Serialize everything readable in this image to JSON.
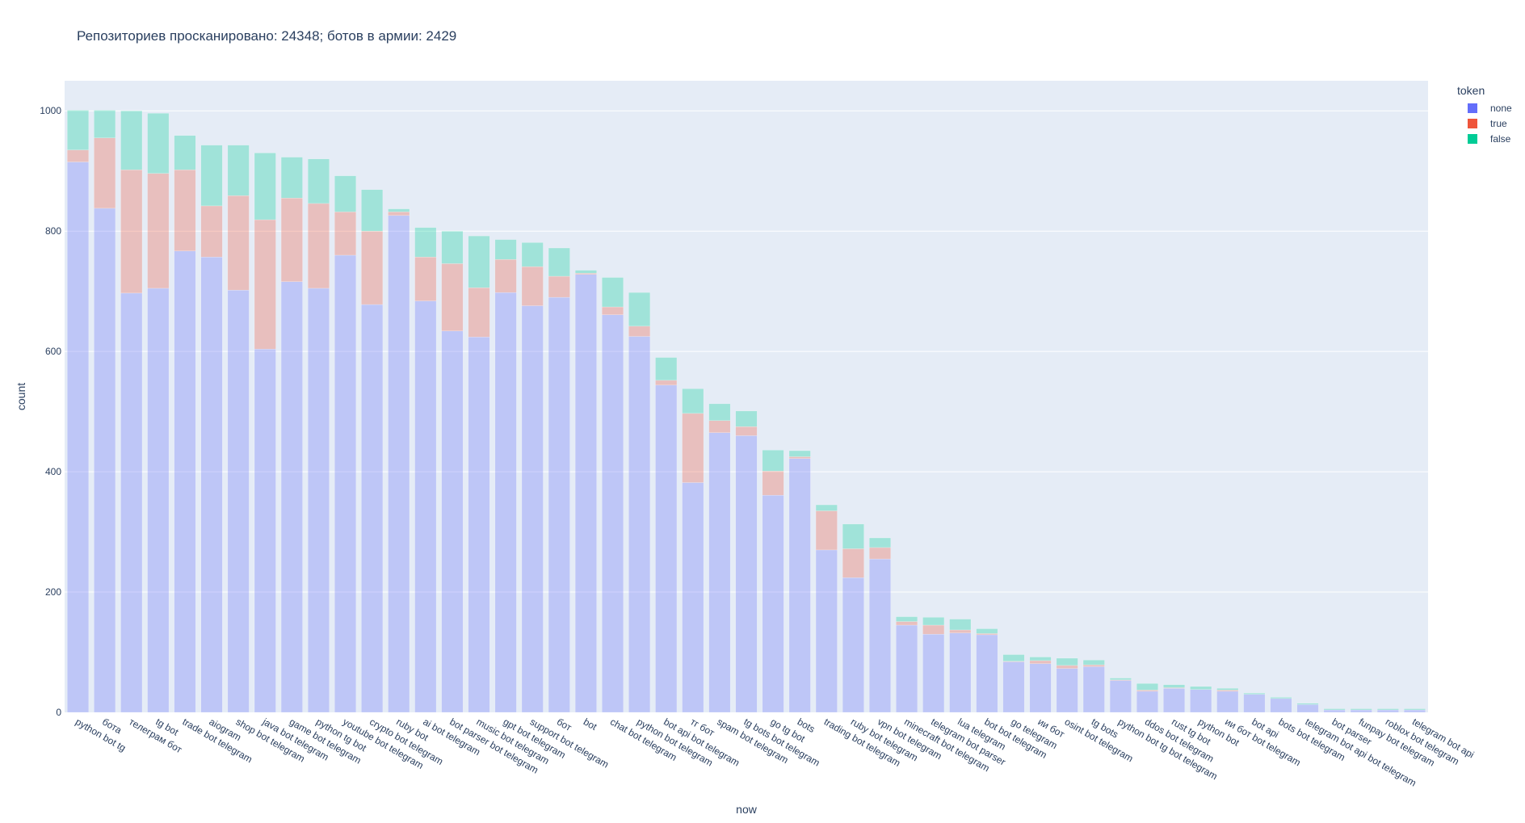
{
  "chart_data": {
    "type": "bar",
    "barmode": "stack",
    "title": "Репозиториев просканировано: 24348; ботов в армии: 2429",
    "xlabel": "now",
    "ylabel": "count",
    "ylim": [
      0,
      1050
    ],
    "yticks": [
      0,
      200,
      400,
      600,
      800,
      1000
    ],
    "grid": true,
    "legend": {
      "title": "token",
      "placement": "top-right"
    },
    "categories": [
      "python bot tg",
      "бота",
      "телеграм бот",
      "tg bot",
      "trade bot telegram",
      "aiogram",
      "shop bot telegram",
      "java bot telegram",
      "game bot telegram",
      "python tg bot",
      "youtube bot telegram",
      "crypto bot telegram",
      "ruby bot",
      "ai bot telegram",
      "bot parser bot telegram",
      "music bot telegram",
      "gpt bot telegram",
      "support bot telegram",
      "бот",
      "bot",
      "chat bot telegram",
      "python bot telegram",
      "bot api bot telegram",
      "тг бот",
      "spam bot telegram",
      "tg bots bot telegram",
      "go tg bot",
      "bots",
      "trading bot telegram",
      "ruby bot telegram",
      "vpn bot telegram",
      "minecraft bot telegram",
      "telegram bot parser",
      "lua telegram",
      "bot bot telegram",
      "go telegram",
      "ии бот",
      "osint bot telegram",
      "tg bots",
      "python bot tg bot telegram",
      "ddos bot telegram",
      "rust tg bot",
      "python bot",
      "ии бот bot telegram",
      "bot api",
      "bots bot telegram",
      "telegram bot api bot telegram",
      "bot parser",
      "funpay bot telegram",
      "roblox bot telegram",
      "telegram bot api"
    ],
    "series": [
      {
        "name": "none",
        "color": "#636efa",
        "values": [
          915,
          838,
          697,
          705,
          767,
          757,
          702,
          604,
          716,
          705,
          760,
          678,
          826,
          684,
          634,
          624,
          698,
          676,
          690,
          728,
          661,
          625,
          544,
          382,
          465,
          460,
          361,
          422,
          270,
          224,
          255,
          145,
          130,
          132,
          129,
          84,
          81,
          73,
          76,
          53,
          35,
          40,
          38,
          35,
          30,
          23,
          13,
          4,
          4,
          4,
          4
        ]
      },
      {
        "name": "true",
        "color": "#ef553b",
        "values": [
          20,
          117,
          205,
          191,
          135,
          85,
          157,
          215,
          139,
          141,
          72,
          122,
          6,
          73,
          112,
          82,
          55,
          65,
          35,
          2,
          13,
          17,
          8,
          115,
          20,
          15,
          40,
          3,
          65,
          48,
          19,
          6,
          15,
          5,
          2,
          1,
          5,
          5,
          3,
          1,
          2,
          1,
          0,
          2,
          0,
          0,
          0,
          0,
          0,
          0,
          0
        ]
      },
      {
        "name": "false",
        "color": "#00cc96",
        "values": [
          66,
          46,
          98,
          100,
          57,
          101,
          84,
          111,
          68,
          74,
          60,
          69,
          5,
          49,
          54,
          86,
          33,
          40,
          47,
          5,
          49,
          56,
          38,
          41,
          28,
          26,
          35,
          10,
          10,
          41,
          16,
          8,
          13,
          18,
          8,
          11,
          6,
          12,
          8,
          3,
          11,
          5,
          5,
          3,
          2,
          2,
          2,
          2,
          2,
          2,
          2
        ]
      }
    ]
  }
}
